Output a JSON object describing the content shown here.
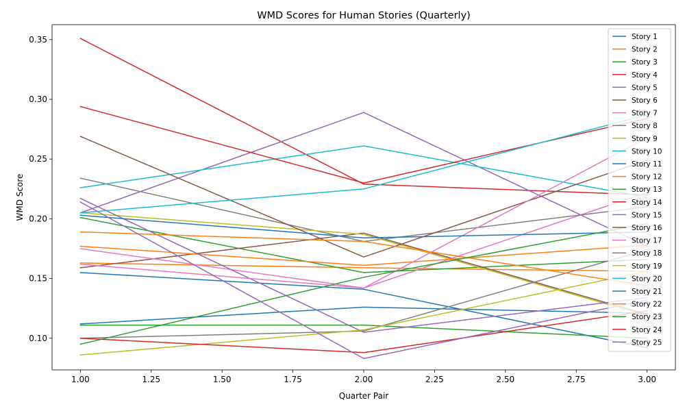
{
  "chart_data": {
    "type": "line",
    "title": "WMD Scores for Human Stories (Quarterly)",
    "xlabel": "Quarter Pair",
    "ylabel": "WMD Score",
    "xlim": [
      0.9,
      3.1
    ],
    "ylim": [
      0.0735,
      0.3625
    ],
    "x_ticks": [
      "1.00",
      "1.25",
      "1.50",
      "1.75",
      "2.00",
      "2.25",
      "2.50",
      "2.75",
      "3.00"
    ],
    "x_tick_values": [
      1.0,
      1.25,
      1.5,
      1.75,
      2.0,
      2.25,
      2.5,
      2.75,
      3.0
    ],
    "y_ticks": [
      "0.10",
      "0.15",
      "0.20",
      "0.25",
      "0.30",
      "0.35"
    ],
    "y_tick_values": [
      0.1,
      0.15,
      0.2,
      0.25,
      0.3,
      0.35
    ],
    "grid": false,
    "legend_position": "right",
    "x": [
      1,
      2,
      3
    ],
    "series": [
      {
        "name": "Story 1",
        "color": "#1f77b4",
        "values": [
          0.155,
          0.141,
          0.092
        ]
      },
      {
        "name": "Story 2",
        "color": "#ff7f0e",
        "values": [
          0.163,
          0.159,
          0.156
        ]
      },
      {
        "name": "Story 3",
        "color": "#2ca02c",
        "values": [
          0.201,
          0.155,
          0.166
        ]
      },
      {
        "name": "Story 4",
        "color": "#d62728",
        "values": [
          0.351,
          0.229,
          0.22
        ]
      },
      {
        "name": "Story 5",
        "color": "#9467bd",
        "values": [
          0.205,
          0.289,
          0.177
        ]
      },
      {
        "name": "Story 6",
        "color": "#8c564b",
        "values": [
          0.159,
          0.188,
          0.12
        ]
      },
      {
        "name": "Story 7",
        "color": "#e377c2",
        "values": [
          0.175,
          0.142,
          0.222
        ]
      },
      {
        "name": "Story 8",
        "color": "#7f7f7f",
        "values": [
          0.234,
          0.181,
          0.21
        ]
      },
      {
        "name": "Story 9",
        "color": "#bcbd22",
        "values": [
          0.205,
          0.187,
          0.119
        ]
      },
      {
        "name": "Story 10",
        "color": "#17becf",
        "values": [
          0.226,
          0.261,
          0.218
        ]
      },
      {
        "name": "Story 11",
        "color": "#1f77b4",
        "values": [
          0.112,
          0.126,
          0.121
        ]
      },
      {
        "name": "Story 12",
        "color": "#ff7f0e",
        "values": [
          0.177,
          0.161,
          0.178
        ]
      },
      {
        "name": "Story 13",
        "color": "#2ca02c",
        "values": [
          0.111,
          0.111,
          0.1
        ]
      },
      {
        "name": "Story 14",
        "color": "#d62728",
        "values": [
          0.294,
          0.23,
          0.284
        ]
      },
      {
        "name": "Story 15",
        "color": "#9467bd",
        "values": [
          0.217,
          0.105,
          0.134
        ]
      },
      {
        "name": "Story 16",
        "color": "#8c564b",
        "values": [
          0.269,
          0.168,
          0.249
        ]
      },
      {
        "name": "Story 17",
        "color": "#e377c2",
        "values": [
          0.162,
          0.142,
          0.268
        ]
      },
      {
        "name": "Story 18",
        "color": "#7f7f7f",
        "values": [
          0.1,
          0.106,
          0.174
        ]
      },
      {
        "name": "Story 19",
        "color": "#bcbd22",
        "values": [
          0.086,
          0.107,
          0.156
        ]
      },
      {
        "name": "Story 20",
        "color": "#17becf",
        "values": [
          0.205,
          0.225,
          0.287
        ]
      },
      {
        "name": "Story 21",
        "color": "#1f77b4",
        "values": [
          0.203,
          0.184,
          0.189
        ]
      },
      {
        "name": "Story 22",
        "color": "#ff7f0e",
        "values": [
          0.189,
          0.181,
          0.144
        ]
      },
      {
        "name": "Story 23",
        "color": "#2ca02c",
        "values": [
          0.095,
          0.151,
          0.196
        ]
      },
      {
        "name": "Story 24",
        "color": "#d62728",
        "values": [
          0.1,
          0.088,
          0.123
        ]
      },
      {
        "name": "Story 25",
        "color": "#9467bd",
        "values": [
          0.214,
          0.083,
          0.132
        ]
      }
    ]
  }
}
